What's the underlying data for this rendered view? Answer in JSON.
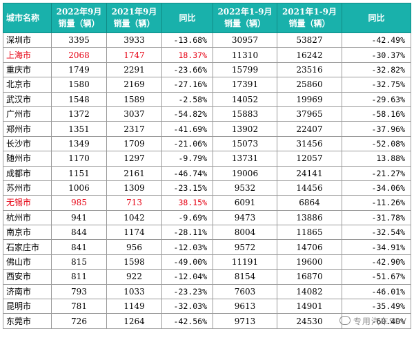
{
  "header": {
    "city": "城市名称",
    "m_2022": [
      "2022年9月",
      "销量（辆）"
    ],
    "m_2021": [
      "2021年9月",
      "销量（辆）"
    ],
    "m_yoy": "同比",
    "y_2022": [
      "2022年1-9月",
      "销量（辆）"
    ],
    "y_2021": [
      "2021年1-9月",
      "销量（辆）"
    ],
    "y_yoy": "同比"
  },
  "colors": {
    "header_bg": "#19b1ab",
    "highlight": "#e60012"
  },
  "rows": [
    {
      "city": "深圳市",
      "m2022": "3395",
      "m2021": "3933",
      "myoy": "-13.68%",
      "y2022": "30957",
      "y2021": "53827",
      "yyoy": "-42.49%",
      "hl": false
    },
    {
      "city": "上海市",
      "m2022": "2068",
      "m2021": "1747",
      "myoy": "18.37%",
      "y2022": "11310",
      "y2021": "16242",
      "yyoy": "-30.37%",
      "hl": true
    },
    {
      "city": "重庆市",
      "m2022": "1749",
      "m2021": "2291",
      "myoy": "-23.66%",
      "y2022": "15799",
      "y2021": "23516",
      "yyoy": "-32.82%",
      "hl": false
    },
    {
      "city": "北京市",
      "m2022": "1580",
      "m2021": "2169",
      "myoy": "-27.16%",
      "y2022": "17391",
      "y2021": "25860",
      "yyoy": "-32.75%",
      "hl": false
    },
    {
      "city": "武汉市",
      "m2022": "1548",
      "m2021": "1589",
      "myoy": "-2.58%",
      "y2022": "14052",
      "y2021": "19969",
      "yyoy": "-29.63%",
      "hl": false
    },
    {
      "city": "广州市",
      "m2022": "1372",
      "m2021": "3037",
      "myoy": "-54.82%",
      "y2022": "15883",
      "y2021": "37965",
      "yyoy": "-58.16%",
      "hl": false
    },
    {
      "city": "郑州市",
      "m2022": "1351",
      "m2021": "2317",
      "myoy": "-41.69%",
      "y2022": "13902",
      "y2021": "22407",
      "yyoy": "-37.96%",
      "hl": false
    },
    {
      "city": "长沙市",
      "m2022": "1349",
      "m2021": "1709",
      "myoy": "-21.06%",
      "y2022": "15073",
      "y2021": "31456",
      "yyoy": "-52.08%",
      "hl": false
    },
    {
      "city": "随州市",
      "m2022": "1170",
      "m2021": "1297",
      "myoy": "-9.79%",
      "y2022": "13731",
      "y2021": "12057",
      "yyoy": "13.88%",
      "hl": false
    },
    {
      "city": "成都市",
      "m2022": "1151",
      "m2021": "2161",
      "myoy": "-46.74%",
      "y2022": "19006",
      "y2021": "24141",
      "yyoy": "-21.27%",
      "hl": false
    },
    {
      "city": "苏州市",
      "m2022": "1006",
      "m2021": "1309",
      "myoy": "-23.15%",
      "y2022": "9532",
      "y2021": "14456",
      "yyoy": "-34.06%",
      "hl": false
    },
    {
      "city": "无锡市",
      "m2022": "985",
      "m2021": "713",
      "myoy": "38.15%",
      "y2022": "6091",
      "y2021": "6864",
      "yyoy": "-11.26%",
      "hl": true
    },
    {
      "city": "杭州市",
      "m2022": "941",
      "m2021": "1042",
      "myoy": "-9.69%",
      "y2022": "9473",
      "y2021": "13886",
      "yyoy": "-31.78%",
      "hl": false
    },
    {
      "city": "南京市",
      "m2022": "844",
      "m2021": "1174",
      "myoy": "-28.11%",
      "y2022": "8004",
      "y2021": "11865",
      "yyoy": "-32.54%",
      "hl": false
    },
    {
      "city": "石家庄市",
      "m2022": "841",
      "m2021": "956",
      "myoy": "-12.03%",
      "y2022": "9572",
      "y2021": "14706",
      "yyoy": "-34.91%",
      "hl": false
    },
    {
      "city": "佛山市",
      "m2022": "815",
      "m2021": "1598",
      "myoy": "-49.00%",
      "y2022": "11191",
      "y2021": "19600",
      "yyoy": "-42.90%",
      "hl": false
    },
    {
      "city": "西安市",
      "m2022": "811",
      "m2021": "922",
      "myoy": "-12.04%",
      "y2022": "8154",
      "y2021": "16870",
      "yyoy": "-51.67%",
      "hl": false
    },
    {
      "city": "济南市",
      "m2022": "793",
      "m2021": "1033",
      "myoy": "-23.23%",
      "y2022": "7603",
      "y2021": "14082",
      "yyoy": "-46.01%",
      "hl": false
    },
    {
      "city": "昆明市",
      "m2022": "781",
      "m2021": "1149",
      "myoy": "-32.03%",
      "y2022": "9613",
      "y2021": "14901",
      "yyoy": "-35.49%",
      "hl": false
    },
    {
      "city": "东莞市",
      "m2022": "726",
      "m2021": "1264",
      "myoy": "-42.56%",
      "y2022": "9713",
      "y2021": "24530",
      "yyoy": "-60.40%",
      "hl": false
    }
  ],
  "watermark": "专用汽车SPV"
}
